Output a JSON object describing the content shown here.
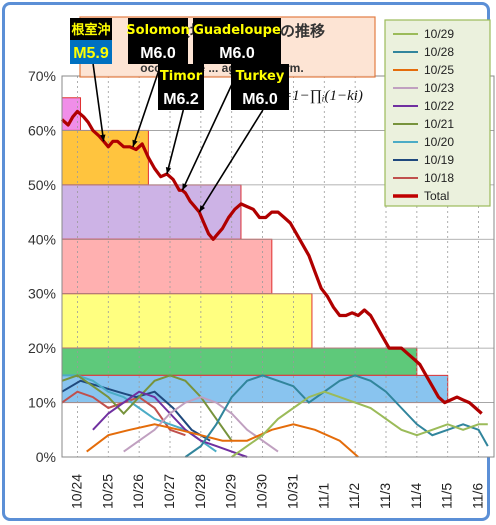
{
  "chart_data": {
    "type": "line",
    "title": "大地震発生確率の推移",
    "subtitle_lines": [
      "...ake",
      "occurrence ... agnetic storm."
    ],
    "formula": "=1−∏ᵢ(1−ki)",
    "x_categories": [
      "10/24",
      "10/25",
      "10/26",
      "10/27",
      "10/28",
      "10/29",
      "10/30",
      "10/31",
      "11/1",
      "11/2",
      "11/3",
      "11/4",
      "11/5",
      "11/6"
    ],
    "y_ticks": [
      "0%",
      "10%",
      "20%",
      "30%",
      "40%",
      "50%",
      "60%",
      "70%"
    ],
    "ylim": [
      0,
      70
    ],
    "grid": true,
    "legend_position": "right",
    "legend": [
      {
        "name": "10/29",
        "color": "#9bbb59"
      },
      {
        "name": "10/28",
        "color": "#31859c"
      },
      {
        "name": "10/25",
        "color": "#e46c0a"
      },
      {
        "name": "10/23",
        "color": "#c0a0c0"
      },
      {
        "name": "10/22",
        "color": "#7030a0"
      },
      {
        "name": "10/21",
        "color": "#77933c"
      },
      {
        "name": "10/20",
        "color": "#4bacc6"
      },
      {
        "name": "10/19",
        "color": "#1f497d"
      },
      {
        "name": "10/18",
        "color": "#c0504d"
      },
      {
        "name": "Total",
        "color": "#c00000"
      }
    ],
    "total_series": {
      "name": "Total",
      "x": [
        0,
        0.1,
        0.2,
        0.35,
        0.5,
        0.7,
        0.85,
        1.0,
        1.2,
        1.35,
        1.5,
        1.65,
        1.8,
        2.0,
        2.2,
        2.4,
        2.6,
        2.8,
        3.0,
        3.2,
        3.4,
        3.6,
        3.7,
        3.8,
        3.9,
        4.0,
        4.15,
        4.3,
        4.45,
        4.6,
        4.75,
        4.9,
        5.05,
        5.2,
        5.4,
        5.6,
        5.8,
        6.0,
        6.2,
        6.4,
        6.6,
        6.8,
        7.0,
        7.2,
        7.4,
        7.6,
        7.8,
        8.0,
        8.2,
        8.4,
        8.6,
        8.8,
        9.0,
        9.2,
        9.4,
        9.6,
        9.8,
        10.0,
        10.2,
        10.4,
        10.6,
        10.8,
        11.0,
        11.2,
        11.4,
        11.6,
        11.8,
        12.0,
        12.2,
        12.4,
        12.6,
        12.8,
        13.0,
        13.2,
        13.4,
        13.6
      ],
      "y": [
        62,
        61.5,
        61,
        62.5,
        63.5,
        62.5,
        61.5,
        60,
        59,
        58,
        57,
        58,
        58,
        57,
        57,
        56.5,
        57.5,
        55,
        53,
        51.5,
        52,
        51,
        50,
        49,
        49,
        48.5,
        47,
        46,
        45,
        43,
        41,
        40,
        41,
        42,
        44,
        45.5,
        46.5,
        46,
        45.5,
        44,
        44,
        45,
        45,
        44,
        43,
        41,
        39,
        37,
        34,
        31,
        29.5,
        27.5,
        26,
        26,
        26.5,
        26,
        27,
        26,
        24,
        22,
        20,
        20,
        20,
        19,
        18,
        17,
        15,
        13,
        11,
        10,
        10.5,
        11,
        10.5,
        10,
        9,
        8
      ]
    },
    "probability_bands": [
      {
        "from_x": 0,
        "to_x": 0.6,
        "y_low": 60,
        "y_high": 66,
        "color": "#f08ee8"
      },
      {
        "from_x": 0,
        "to_x": 2.8,
        "y_low": 50,
        "y_high": 60,
        "color": "#ffc43e"
      },
      {
        "from_x": 0,
        "to_x": 5.8,
        "y_low": 40,
        "y_high": 50,
        "color": "#cdb3e6"
      },
      {
        "from_x": 0,
        "to_x": 6.8,
        "y_low": 30,
        "y_high": 40,
        "color": "#ffb0b0"
      },
      {
        "from_x": 0,
        "to_x": 8.1,
        "y_low": 20,
        "y_high": 30,
        "color": "#ffff80"
      },
      {
        "from_x": 0,
        "to_x": 11.5,
        "y_low": 15,
        "y_high": 20,
        "color": "#5ec97a"
      },
      {
        "from_x": 0,
        "to_x": 12.5,
        "y_low": 10,
        "y_high": 15,
        "color": "#89c4ef"
      }
    ],
    "component_series": [
      {
        "name": "10/18",
        "color": "#c0504d",
        "x": [
          0,
          0.5,
          1.0,
          1.5,
          2.0,
          2.5,
          3.0,
          3.5,
          4.0
        ],
        "y": [
          10,
          12,
          11,
          9,
          10,
          11,
          9,
          5,
          4
        ]
      },
      {
        "name": "10/19",
        "color": "#1f497d",
        "x": [
          0,
          0.6,
          1.2,
          1.8,
          2.4,
          3.0,
          3.6,
          4.2,
          4.8
        ],
        "y": [
          12,
          14,
          13,
          12,
          11,
          12,
          9,
          5,
          3
        ]
      },
      {
        "name": "10/20",
        "color": "#4bacc6",
        "x": [
          0,
          0.5,
          1.0,
          1.5,
          2.0,
          2.5,
          3.0,
          3.5,
          4.0,
          4.5,
          5.0
        ],
        "y": [
          15,
          15,
          14,
          12,
          11,
          9,
          7,
          6,
          5,
          3,
          1
        ]
      },
      {
        "name": "10/21",
        "color": "#77933c",
        "x": [
          0,
          0.5,
          1.0,
          1.5,
          2.0,
          2.5,
          3.0,
          3.5,
          4.0,
          4.5,
          5.0,
          5.5
        ],
        "y": [
          14,
          15,
          13,
          11,
          8,
          11,
          14,
          15,
          14,
          11,
          7,
          3
        ]
      },
      {
        "name": "10/22",
        "color": "#7030a0",
        "x": [
          1.0,
          1.5,
          2.0,
          2.5,
          3.0,
          3.5,
          4.0,
          4.5,
          5.0,
          5.5,
          6.0
        ],
        "y": [
          5,
          8,
          10,
          12,
          11,
          8,
          5,
          3,
          2,
          1,
          0
        ]
      },
      {
        "name": "10/23",
        "color": "#c0a0c0",
        "x": [
          2.0,
          2.5,
          3.0,
          3.5,
          4.0,
          4.5,
          5.0,
          5.5,
          6.0,
          6.5,
          7.0
        ],
        "y": [
          1,
          3,
          5,
          8,
          10,
          11,
          10,
          8,
          5,
          3,
          1
        ]
      },
      {
        "name": "10/25",
        "color": "#e46c0a",
        "x": [
          0.8,
          1.5,
          2.2,
          3.0,
          3.8,
          4.5,
          5.2,
          6.0,
          6.8,
          7.5,
          8.2,
          9.0,
          9.6
        ],
        "y": [
          1,
          4,
          5,
          6,
          5,
          4,
          3,
          3,
          5,
          6,
          5,
          3,
          0
        ]
      },
      {
        "name": "10/28",
        "color": "#31859c",
        "x": [
          4.0,
          4.5,
          5.0,
          5.5,
          6.0,
          6.5,
          7.0,
          7.5,
          8.0,
          8.5,
          9.0,
          9.5,
          10.0,
          10.5,
          11.0,
          11.5,
          12.0,
          12.5,
          13.0,
          13.5,
          13.8
        ],
        "y": [
          0,
          2,
          6,
          11,
          14,
          15,
          14,
          13,
          10,
          12,
          14,
          15,
          14,
          12,
          9,
          6,
          4,
          5,
          6,
          5,
          2
        ]
      },
      {
        "name": "10/29",
        "color": "#9bbb59",
        "x": [
          5.5,
          6.0,
          6.5,
          7.0,
          7.5,
          8.0,
          8.5,
          9.0,
          9.5,
          10.0,
          10.5,
          11.0,
          11.5,
          12.0,
          12.5,
          13.0,
          13.5,
          13.8
        ],
        "y": [
          0,
          2,
          4,
          7,
          9,
          11,
          12,
          11,
          10,
          9,
          7,
          5,
          4,
          5,
          6,
          5,
          6,
          6
        ]
      }
    ],
    "annotations": [
      {
        "label": "根室沖",
        "magnitude": "M5.9",
        "at_x": 1.35,
        "at_y": 58
      },
      {
        "label": "Solomon",
        "magnitude": "M6.0",
        "at_x": 2.3,
        "at_y": 57
      },
      {
        "label": "Timor",
        "magnitude": "M6.2",
        "at_x": 3.4,
        "at_y": 52
      },
      {
        "label": "Guadeloupe",
        "magnitude": "M6.0",
        "at_x": 3.9,
        "at_y": 49
      },
      {
        "label": "Turkey",
        "magnitude": "M6.0",
        "at_x": 4.45,
        "at_y": 45
      }
    ]
  }
}
